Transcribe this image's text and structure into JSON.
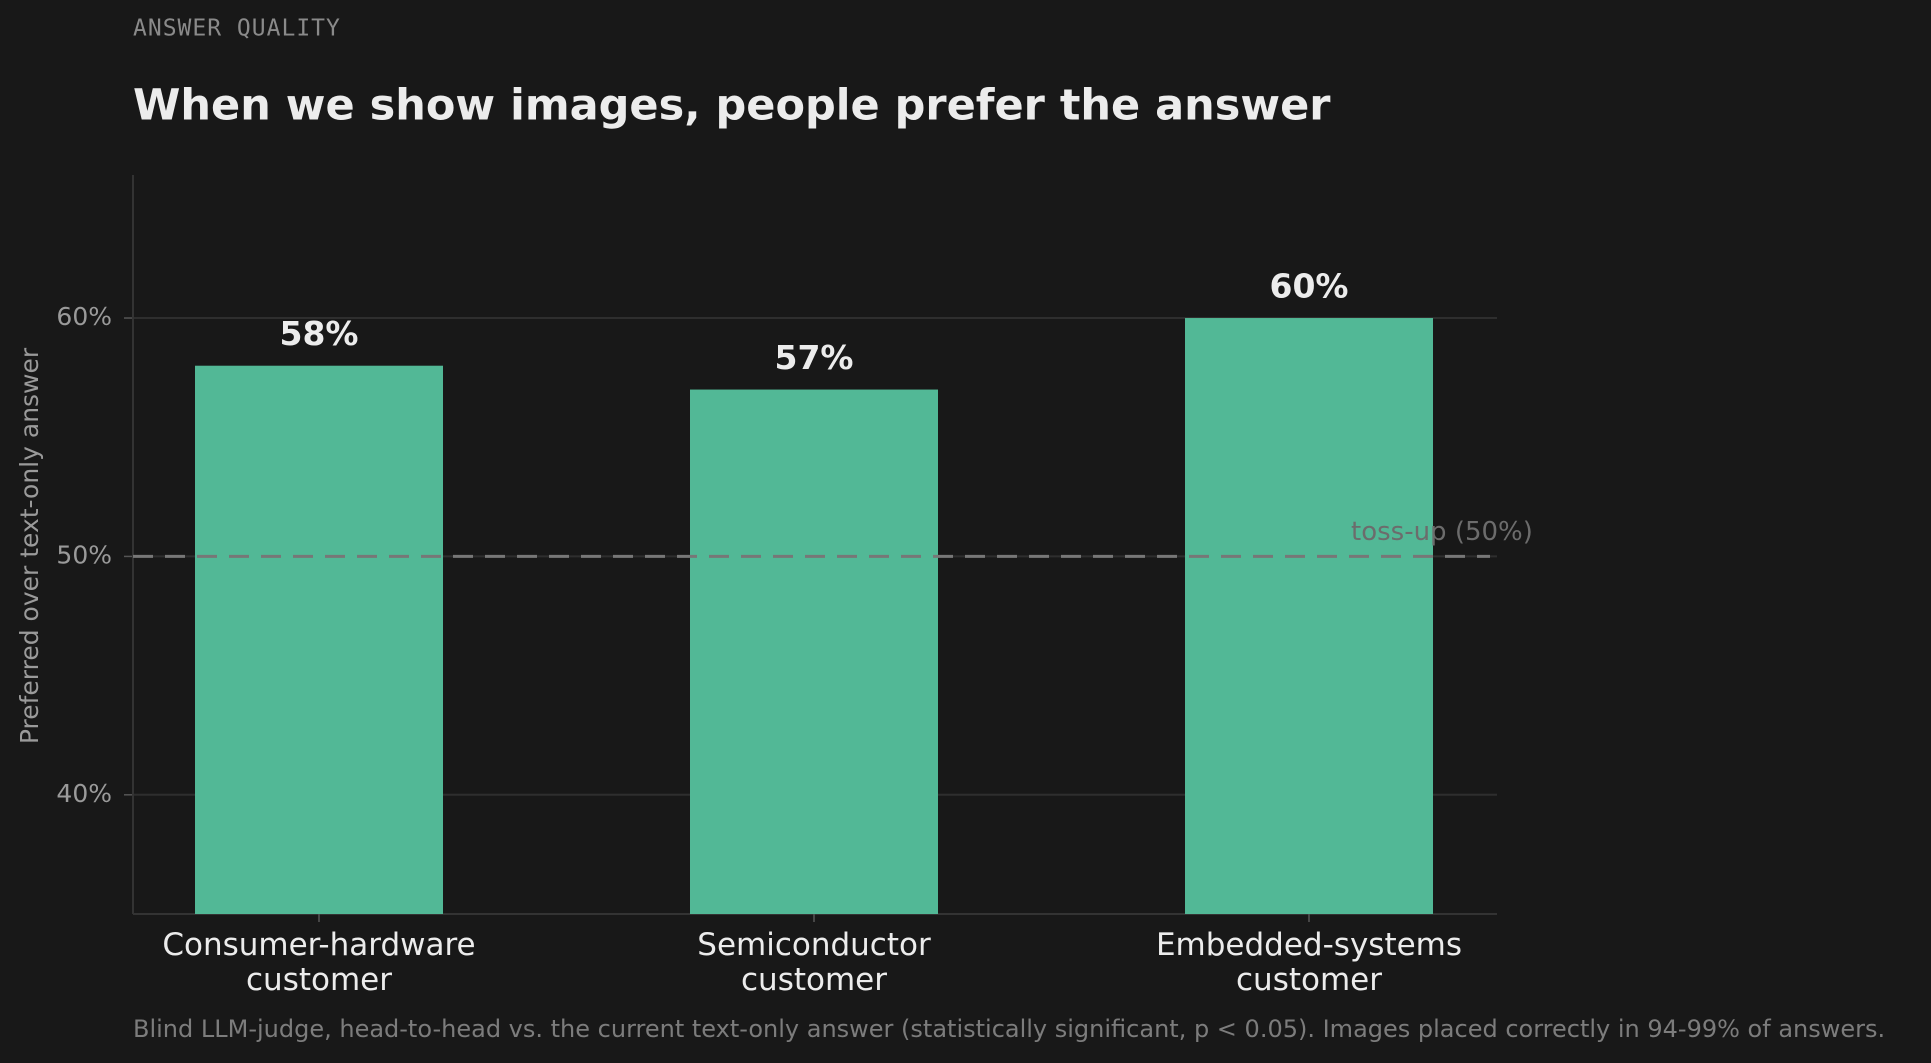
{
  "chart_data": {
    "type": "bar",
    "eyebrow": "ANSWER QUALITY",
    "title": "When we show images, people prefer the answer",
    "y_label": "Preferred over text-only answer",
    "categories": [
      "Consumer-hardware customer",
      "Semiconductor customer",
      "Embedded-systems customer"
    ],
    "values": [
      58,
      57,
      60
    ],
    "value_labels": [
      "58%",
      "57%",
      "60%"
    ],
    "color": "#52b896",
    "ylim": [
      35,
      66
    ],
    "yticks": [
      {
        "value": 40,
        "label": "40%"
      },
      {
        "value": 50,
        "label": "50%"
      },
      {
        "value": 60,
        "label": "60%"
      }
    ],
    "grid": true,
    "reference_line": {
      "value": 50,
      "label": "toss-up (50%)"
    },
    "footnote": "Blind LLM-judge, head-to-head vs. the current text-only answer (statistically significant, p < 0.05). Images placed correctly in 94-99% of answers."
  }
}
